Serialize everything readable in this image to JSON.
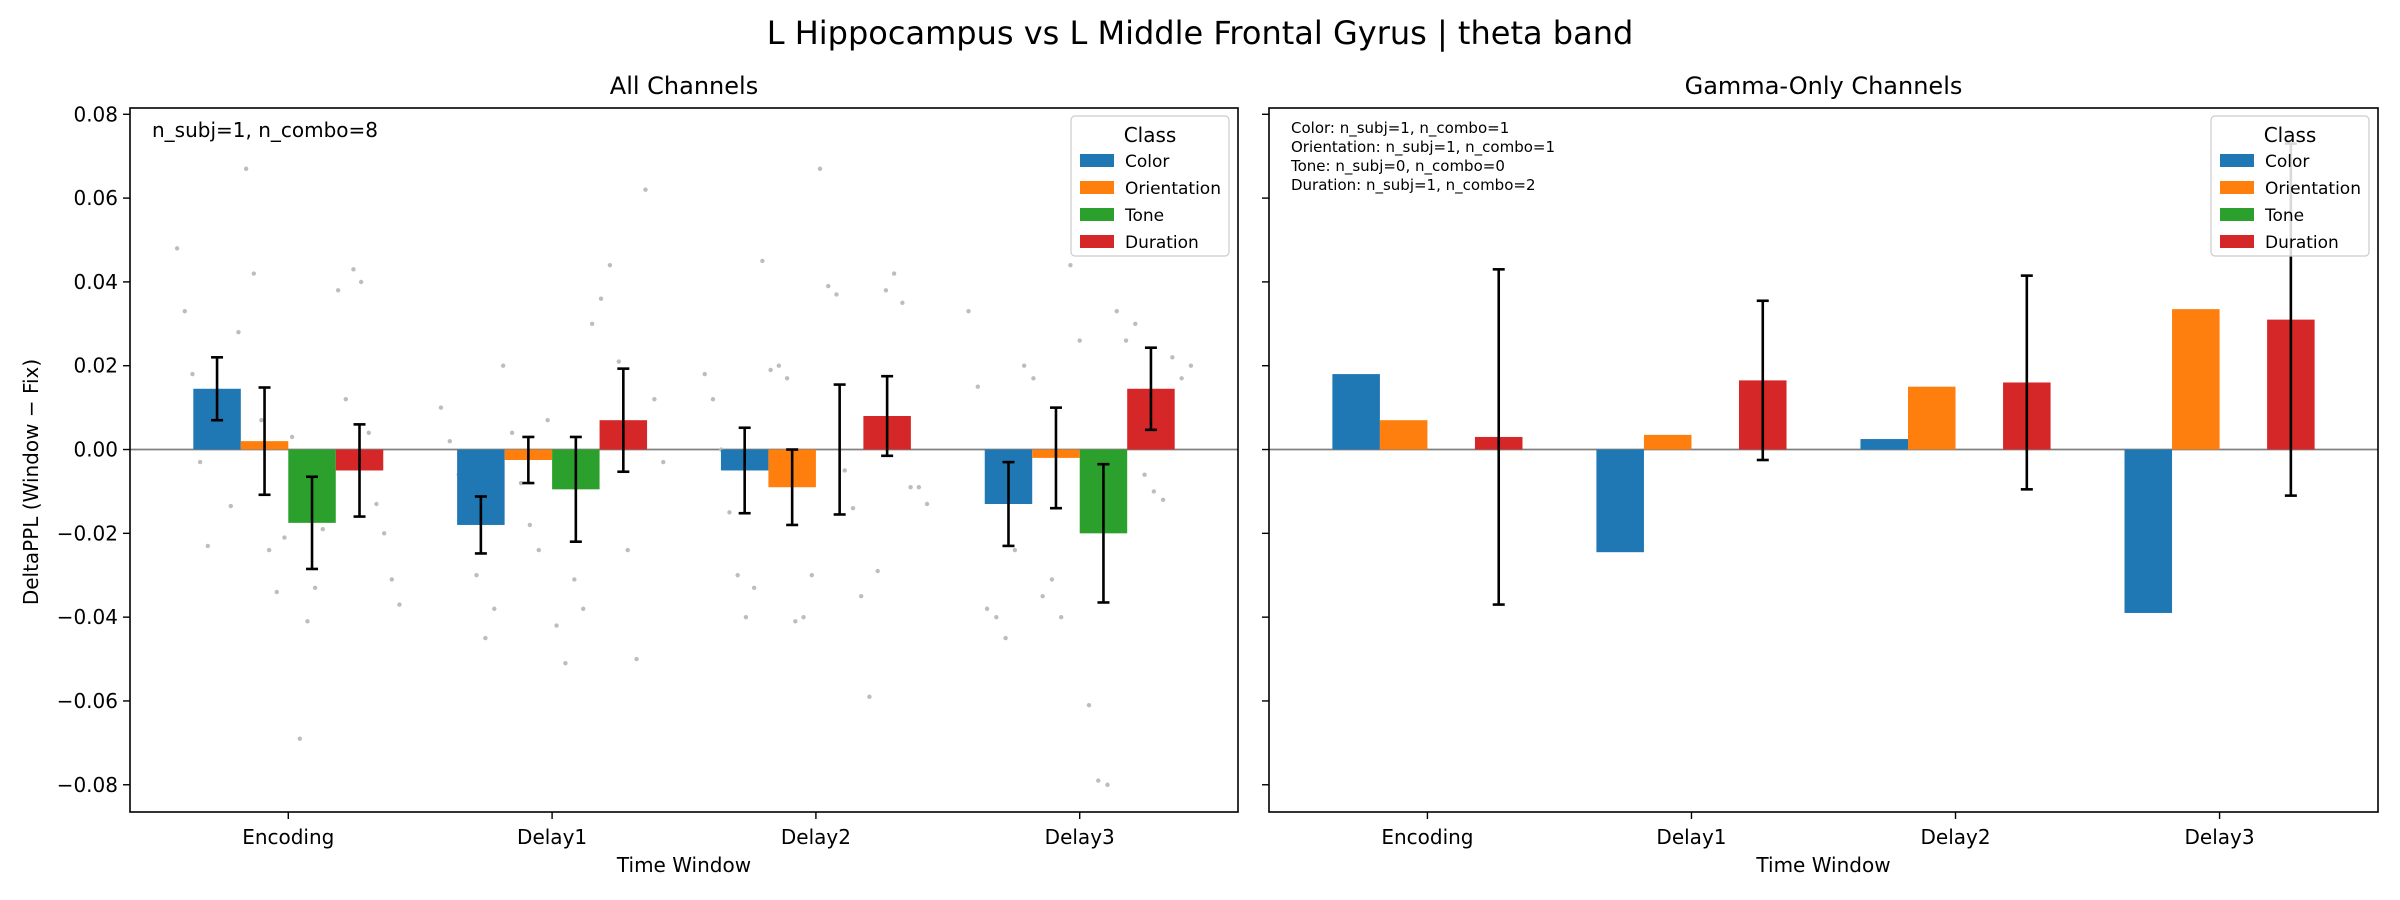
{
  "figure": {
    "suptitle": "L Hippocampus vs L Middle Frontal Gyrus  |  theta band",
    "ylabel": "DeltaPPL (Window − Fix)",
    "legend_title": "Class",
    "colors": {
      "Color": "#1f77b4",
      "Orientation": "#ff7f0e",
      "Tone": "#2ca02c",
      "Duration": "#d62728"
    }
  },
  "chart_data": [
    {
      "type": "bar",
      "title": "All Channels",
      "xlabel": "Time Window",
      "ylabel": "DeltaPPL (Window − Fix)",
      "categories": [
        "Encoding",
        "Delay1",
        "Delay2",
        "Delay3"
      ],
      "ylim": [
        -0.0865,
        0.0815
      ],
      "yticks": [
        -0.08,
        -0.06,
        -0.04,
        -0.02,
        0.0,
        0.02,
        0.04,
        0.06,
        0.08
      ],
      "ytick_labels": [
        "−0.08",
        "−0.06",
        "−0.04",
        "−0.02",
        "0.00",
        "0.02",
        "0.04",
        "0.06",
        "0.08"
      ],
      "legend_placement": "top-right",
      "annotation": [
        "n_subj=1, n_combo=8"
      ],
      "annotation_size": "large",
      "series": [
        {
          "name": "Color",
          "values": [
            0.0145,
            -0.018,
            -0.005,
            -0.013
          ],
          "errors": [
            0.0075,
            0.0068,
            0.0102,
            0.01
          ]
        },
        {
          "name": "Orientation",
          "values": [
            0.002,
            -0.0025,
            -0.009,
            -0.002
          ],
          "errors": [
            0.0128,
            0.0055,
            0.009,
            0.012
          ]
        },
        {
          "name": "Tone",
          "values": [
            -0.0175,
            -0.0095,
            null,
            -0.02
          ],
          "errors": [
            0.011,
            0.0125,
            null,
            0.0165
          ]
        },
        {
          "name": "Duration",
          "values": [
            -0.005,
            0.007,
            0.008,
            0.0145
          ],
          "errors": [
            0.011,
            0.0123,
            0.0095,
            0.0098
          ]
        }
      ],
      "extra_errorbars": [
        {
          "category": "Delay2",
          "series": "Tone",
          "center": 0.0,
          "error": 0.0155
        }
      ],
      "scatter": [
        [
          0.048,
          0.033,
          0.018,
          -0.003,
          -0.023,
          0.013,
          0.004,
          -0.0135,
          0.028,
          0.067,
          0.042,
          0.007,
          -0.024,
          -0.034,
          -0.021,
          0.003,
          -0.069,
          -0.041,
          -0.033,
          -0.019,
          -0.015,
          0.038,
          0.012,
          0.043,
          0.04,
          0.004,
          -0.013,
          -0.02,
          -0.031,
          -0.037
        ],
        [
          0.01,
          0.002,
          -0.006,
          -0.015,
          -0.03,
          -0.045,
          -0.038,
          0.02,
          0.004,
          -0.008,
          -0.018,
          -0.024,
          0.007,
          -0.042,
          -0.051,
          -0.031,
          -0.038,
          0.03,
          0.036,
          0.044,
          0.021,
          -0.024,
          -0.05,
          0.062,
          0.012,
          -0.003
        ],
        [
          0.018,
          0.012,
          0.0,
          -0.015,
          -0.03,
          -0.04,
          -0.033,
          0.045,
          0.019,
          0.02,
          0.017,
          -0.041,
          -0.04,
          -0.03,
          0.067,
          0.039,
          0.037,
          -0.005,
          -0.014,
          -0.035,
          -0.059,
          -0.029,
          0.038,
          0.042,
          0.035,
          -0.009,
          -0.009,
          -0.013
        ],
        [
          0.033,
          0.015,
          -0.038,
          -0.04,
          -0.045,
          -0.024,
          0.02,
          0.017,
          -0.035,
          -0.031,
          -0.04,
          0.044,
          0.026,
          -0.061,
          -0.079,
          -0.08,
          0.033,
          0.026,
          0.03,
          -0.006,
          -0.01,
          -0.012,
          0.022,
          0.017,
          0.02
        ]
      ]
    },
    {
      "type": "bar",
      "title": "Gamma-Only Channels",
      "xlabel": "Time Window",
      "categories": [
        "Encoding",
        "Delay1",
        "Delay2",
        "Delay3"
      ],
      "ylim": [
        -0.0865,
        0.0815
      ],
      "yticks": [
        -0.08,
        -0.06,
        -0.04,
        -0.02,
        0.0,
        0.02,
        0.04,
        0.06,
        0.08
      ],
      "legend_placement": "top-right",
      "annotation": [
        "Color: n_subj=1, n_combo=1",
        "Orientation: n_subj=1, n_combo=1",
        "Tone: n_subj=0, n_combo=0",
        "Duration: n_subj=1, n_combo=2"
      ],
      "annotation_size": "small",
      "series": [
        {
          "name": "Color",
          "values": [
            0.018,
            -0.0245,
            0.0025,
            -0.039
          ],
          "errors": [
            null,
            null,
            null,
            null
          ]
        },
        {
          "name": "Orientation",
          "values": [
            0.007,
            0.0035,
            0.015,
            0.0335
          ],
          "errors": [
            null,
            null,
            null,
            null
          ]
        },
        {
          "name": "Tone",
          "values": [
            null,
            null,
            null,
            null
          ],
          "errors": [
            null,
            null,
            null,
            null
          ]
        },
        {
          "name": "Duration",
          "values": [
            0.003,
            0.0165,
            0.016,
            0.031
          ],
          "errors": [
            0.04,
            0.019,
            0.0255,
            0.042
          ]
        }
      ],
      "extra_errorbars": [],
      "scatter": [
        [],
        [],
        [],
        []
      ]
    }
  ]
}
